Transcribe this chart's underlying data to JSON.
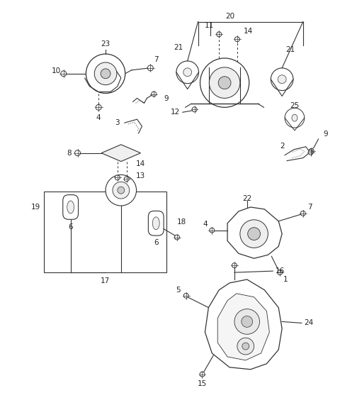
{
  "background_color": "#ffffff",
  "fig_width": 4.8,
  "fig_height": 5.78,
  "dpi": 100,
  "line_color": "#333333",
  "label_fontsize": 7.5
}
